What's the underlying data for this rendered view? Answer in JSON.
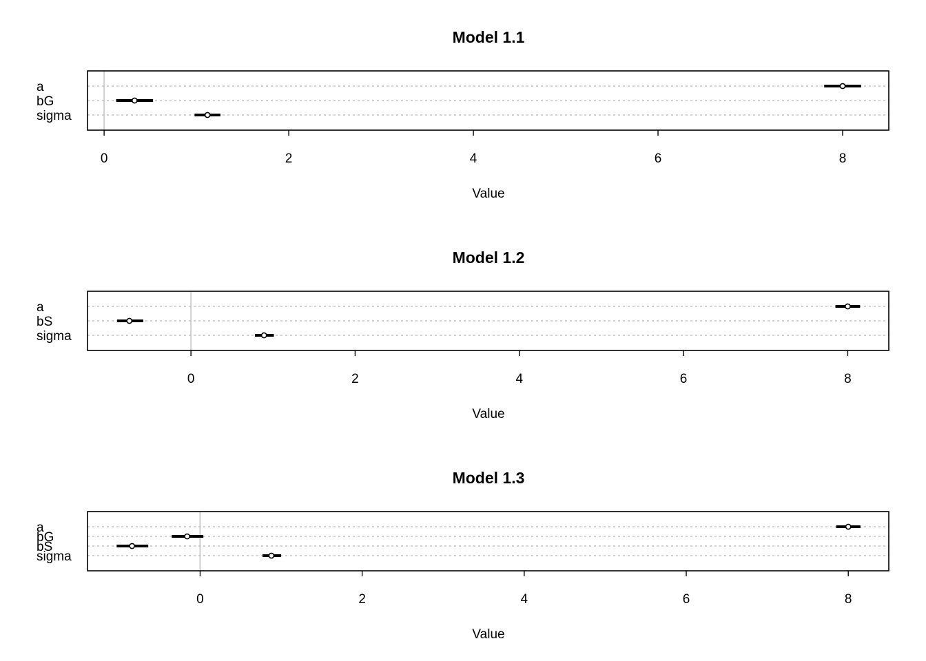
{
  "chart_data": [
    {
      "type": "coefficient-interval",
      "title": "Model 1.1",
      "xlabel": "Value",
      "xlim": [
        -0.18,
        8.5
      ],
      "xticks": [
        0,
        2,
        4,
        6,
        8
      ],
      "zero_line": true,
      "grid": "horizontal dotted",
      "parameters": [
        {
          "name": "a",
          "mean": 8.0,
          "lower": 7.8,
          "upper": 8.2
        },
        {
          "name": "bG",
          "mean": 0.33,
          "lower": 0.13,
          "upper": 0.53
        },
        {
          "name": "sigma",
          "mean": 1.12,
          "lower": 0.98,
          "upper": 1.26
        }
      ]
    },
    {
      "type": "coefficient-interval",
      "title": "Model 1.2",
      "xlabel": "Value",
      "xlim": [
        -1.26,
        8.5
      ],
      "xticks": [
        0,
        2,
        4,
        6,
        8
      ],
      "zero_line": true,
      "grid": "horizontal dotted",
      "parameters": [
        {
          "name": "a",
          "mean": 8.0,
          "lower": 7.85,
          "upper": 8.15
        },
        {
          "name": "bS",
          "mean": -0.75,
          "lower": -0.9,
          "upper": -0.58
        },
        {
          "name": "sigma",
          "mean": 0.89,
          "lower": 0.78,
          "upper": 1.01
        }
      ]
    },
    {
      "type": "coefficient-interval",
      "title": "Model 1.3",
      "xlabel": "Value",
      "xlim": [
        -1.39,
        8.5
      ],
      "xticks": [
        0,
        2,
        4,
        6,
        8
      ],
      "zero_line": true,
      "grid": "horizontal dotted",
      "parameters": [
        {
          "name": "a",
          "mean": 8.0,
          "lower": 7.85,
          "upper": 8.15
        },
        {
          "name": "bG",
          "mean": -0.16,
          "lower": -0.35,
          "upper": 0.04
        },
        {
          "name": "bS",
          "mean": -0.84,
          "lower": -1.03,
          "upper": -0.64
        },
        {
          "name": "sigma",
          "mean": 0.88,
          "lower": 0.77,
          "upper": 1.0
        }
      ]
    }
  ]
}
